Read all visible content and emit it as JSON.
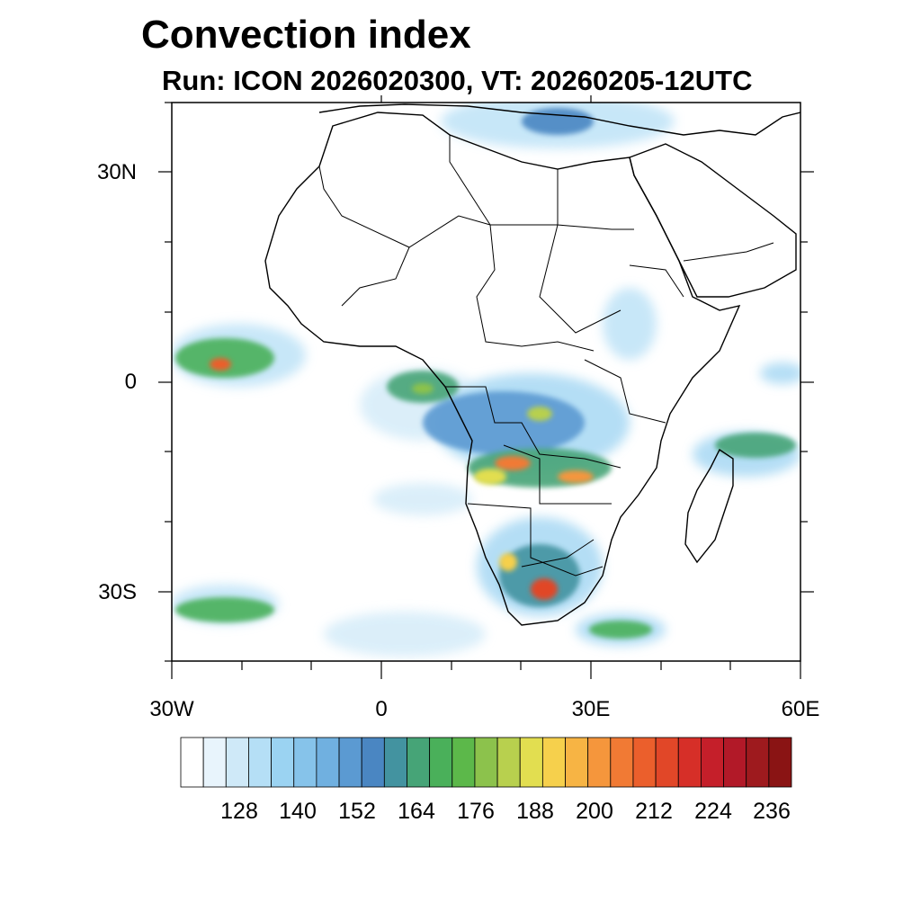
{
  "title": "Convection index",
  "subtitle": "Run: ICON 2026020300,  VT: 20260205-12UTC",
  "map": {
    "lon_range": [
      -30,
      60
    ],
    "lat_range": [
      -40,
      40
    ],
    "lat_labels": [
      "30N",
      "0",
      "30S"
    ],
    "lon_labels": [
      "30W",
      "0",
      "30E",
      "60E"
    ]
  },
  "colorbar": {
    "labels": [
      "128",
      "140",
      "152",
      "164",
      "176",
      "188",
      "200",
      "212",
      "224",
      "236"
    ],
    "colors": [
      "#ffffff",
      "#e8f4fc",
      "#cfe9f8",
      "#b5dff6",
      "#9bd3f2",
      "#86c3ea",
      "#70b0e0",
      "#5b9ad2",
      "#4a86c2",
      "#4393a0",
      "#46a477",
      "#4ab05a",
      "#5cb84a",
      "#8cc24c",
      "#b8d04e",
      "#e2de50",
      "#f6d04c",
      "#f7b444",
      "#f5963c",
      "#f17a34",
      "#eb5f2c",
      "#e14728",
      "#d62f28",
      "#c51f2a",
      "#b21928",
      "#9e1a1e",
      "#8a1414"
    ]
  }
}
